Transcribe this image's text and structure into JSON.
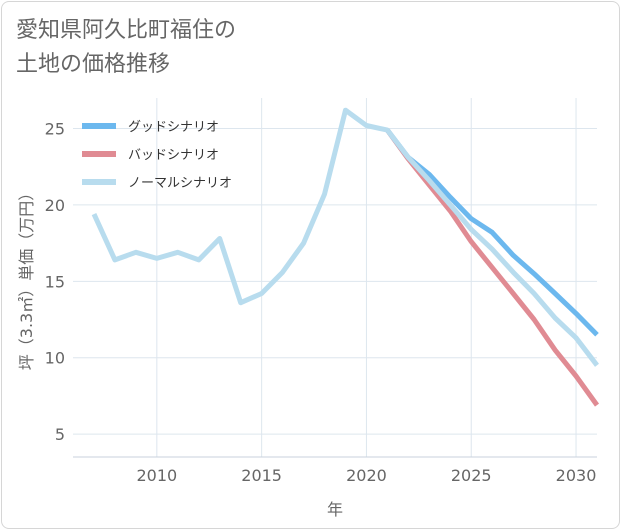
{
  "title_lines": [
    "愛知県阿久比町福住の",
    "土地の価格推移"
  ],
  "chart_data": {
    "type": "line",
    "xlabel": "年",
    "ylabel": "坪（3.3㎡）単価（万円）",
    "xlim": [
      2006,
      2031
    ],
    "ylim": [
      3.5,
      27
    ],
    "x_ticks": [
      "2010",
      "2015",
      "2020",
      "2025",
      "2030"
    ],
    "y_ticks": [
      "5",
      "10",
      "15",
      "20",
      "25"
    ],
    "grid": true,
    "legend_position": "top-left",
    "series": [
      {
        "name": "グッドシナリオ",
        "color": "#6cb8ee",
        "x": [
          2021,
          2022,
          2023,
          2024,
          2025,
          2026,
          2027,
          2028,
          2029,
          2030,
          2031
        ],
        "y": [
          24.9,
          23.1,
          22.0,
          20.5,
          19.1,
          18.2,
          16.7,
          15.5,
          14.2,
          12.9,
          11.5
        ]
      },
      {
        "name": "バッドシナリオ",
        "color": "#e08b93",
        "x": [
          2021,
          2022,
          2023,
          2024,
          2025,
          2026,
          2027,
          2028,
          2029,
          2030,
          2031
        ],
        "y": [
          24.9,
          23.0,
          21.3,
          19.6,
          17.6,
          15.9,
          14.2,
          12.5,
          10.5,
          8.8,
          6.9
        ]
      },
      {
        "name": "ノーマルシナリオ",
        "color": "#b8dcee",
        "x": [
          2007,
          2008,
          2009,
          2010,
          2011,
          2012,
          2013,
          2014,
          2015,
          2016,
          2017,
          2018,
          2019,
          2020,
          2021,
          2022,
          2023,
          2024,
          2025,
          2026,
          2027,
          2028,
          2029,
          2030,
          2031
        ],
        "y": [
          19.4,
          16.4,
          16.9,
          16.5,
          16.9,
          16.4,
          17.8,
          13.6,
          14.2,
          15.6,
          17.5,
          20.7,
          26.2,
          25.2,
          24.9,
          23.1,
          21.6,
          20.0,
          18.4,
          17.1,
          15.6,
          14.2,
          12.6,
          11.3,
          9.5
        ]
      }
    ]
  }
}
